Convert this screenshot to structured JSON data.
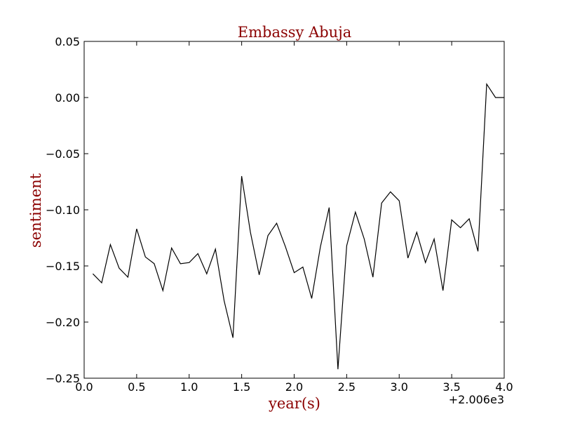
{
  "chart_data": {
    "type": "line",
    "title": "Embassy Abuja",
    "xlabel": "year(s)",
    "ylabel": "sentiment",
    "x_offset_label": "+2.006e3",
    "xlim": [
      0.0,
      4.0
    ],
    "ylim": [
      -0.25,
      0.05
    ],
    "x_ticks": [
      0.0,
      0.5,
      1.0,
      1.5,
      2.0,
      2.5,
      3.0,
      3.5,
      4.0
    ],
    "x_tick_labels": [
      "0.0",
      "0.5",
      "1.0",
      "1.5",
      "2.0",
      "2.5",
      "3.0",
      "3.5",
      "4.0"
    ],
    "y_ticks": [
      0.05,
      0.0,
      -0.05,
      -0.1,
      -0.15,
      -0.2,
      -0.25
    ],
    "y_tick_labels": [
      "0.05",
      "0.00",
      "−0.05",
      "−0.10",
      "−0.15",
      "−0.20",
      "−0.25"
    ],
    "grid": false,
    "colors": {
      "line": "#000000",
      "title": "#8b0000",
      "axis_label": "#8b0000"
    },
    "series": [
      {
        "x": [
          0.083,
          0.167,
          0.25,
          0.333,
          0.417,
          0.5,
          0.583,
          0.667,
          0.75,
          0.833,
          0.917,
          1.0,
          1.083,
          1.167,
          1.25,
          1.333,
          1.417,
          1.5,
          1.583,
          1.667,
          1.75,
          1.833,
          1.917,
          2.0,
          2.083,
          2.167,
          2.25,
          2.333,
          2.417,
          2.5,
          2.583,
          2.667,
          2.75,
          2.833,
          2.917,
          3.0,
          3.083,
          3.167,
          3.25,
          3.333,
          3.417,
          3.5,
          3.583,
          3.667,
          3.75,
          3.833,
          3.917,
          4.0
        ],
        "y": [
          -0.157,
          -0.165,
          -0.131,
          -0.152,
          -0.16,
          -0.117,
          -0.142,
          -0.148,
          -0.172,
          -0.134,
          -0.148,
          -0.147,
          -0.139,
          -0.157,
          -0.135,
          -0.181,
          -0.214,
          -0.07,
          -0.12,
          -0.158,
          -0.123,
          -0.112,
          -0.133,
          -0.156,
          -0.151,
          -0.179,
          -0.133,
          -0.098,
          -0.242,
          -0.132,
          -0.102,
          -0.126,
          -0.16,
          -0.094,
          -0.084,
          -0.092,
          -0.143,
          -0.12,
          -0.147,
          -0.126,
          -0.172,
          -0.109,
          -0.116,
          -0.108,
          -0.137,
          0.012,
          0.0,
          0.0
        ]
      }
    ]
  }
}
